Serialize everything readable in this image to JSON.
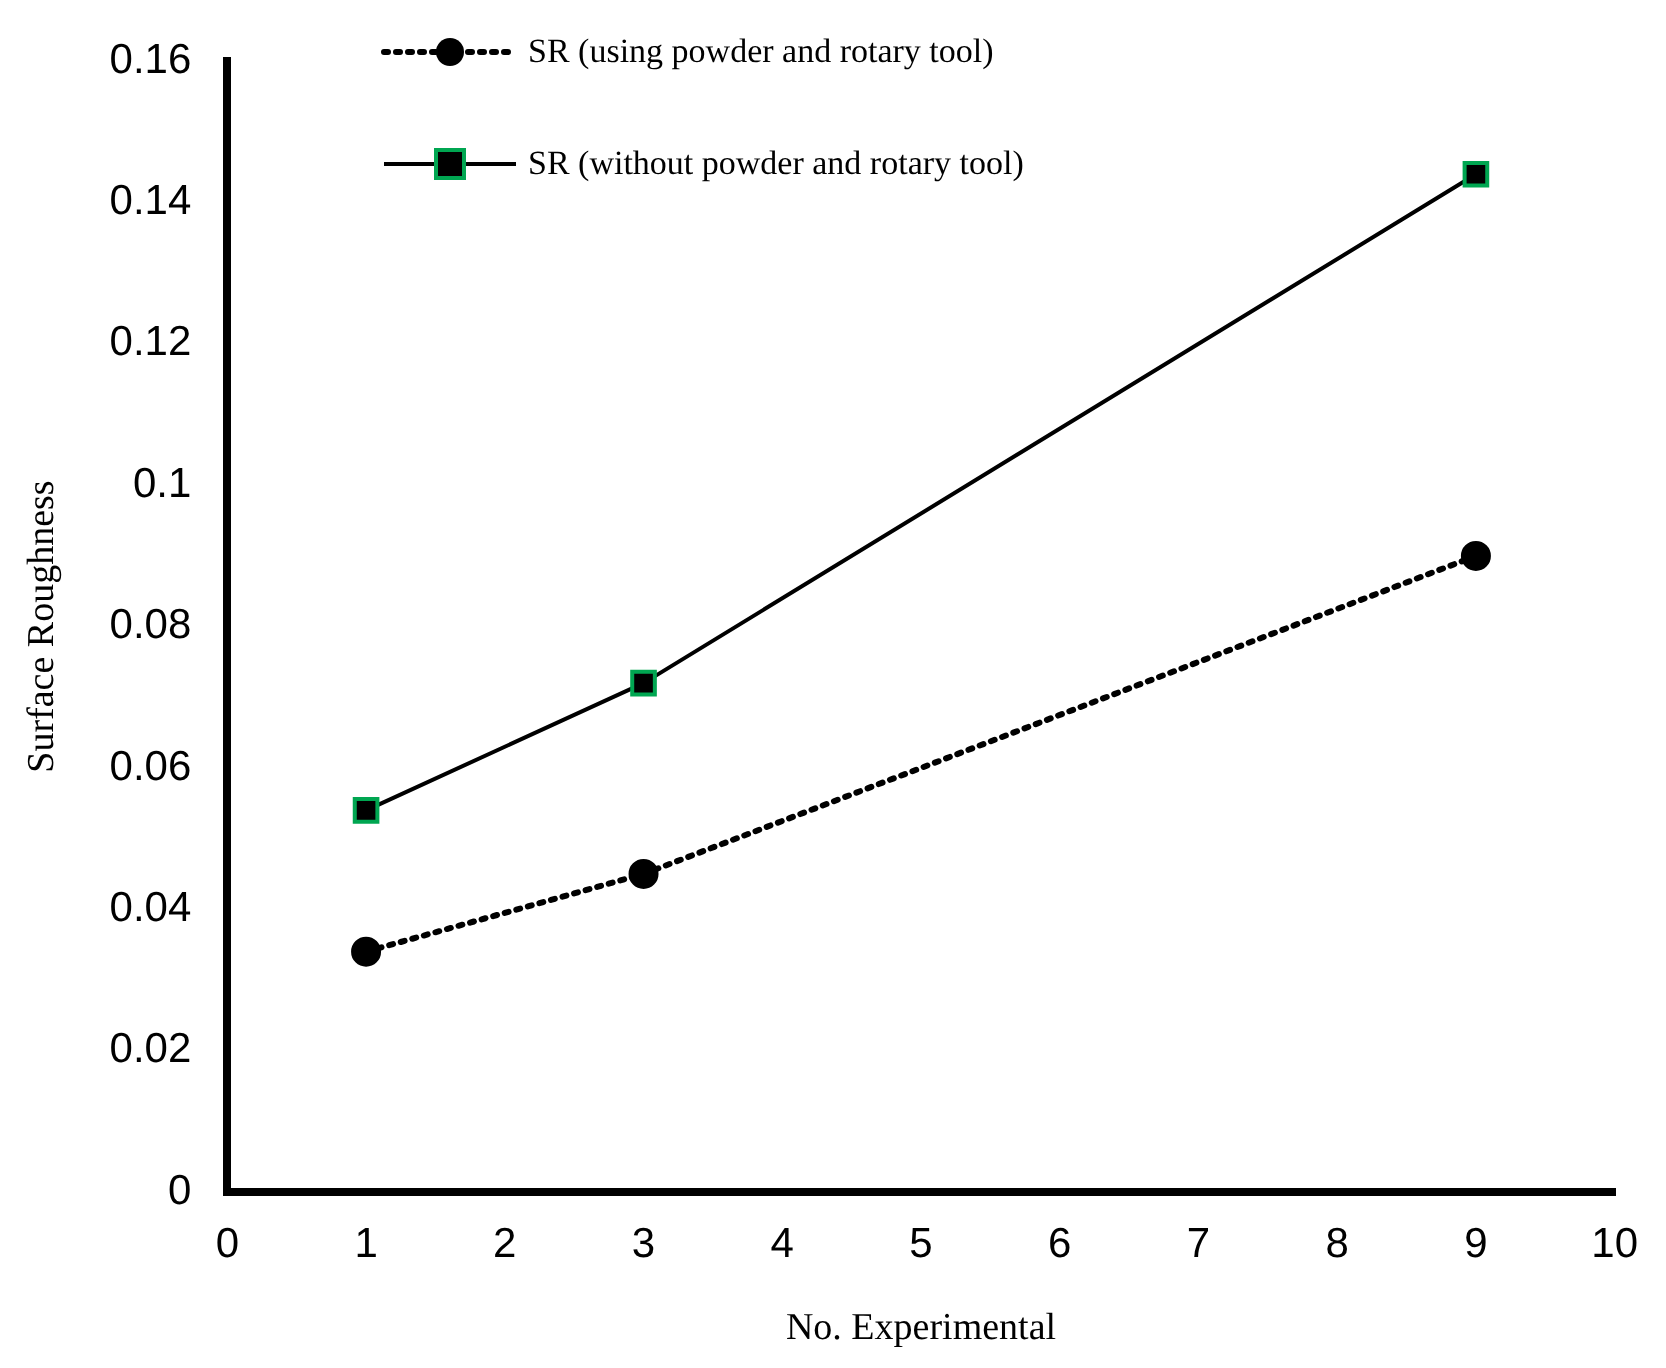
{
  "chart_data": {
    "type": "line",
    "xlabel": "No. Experimental",
    "ylabel": "Surface Roughness",
    "xlim": [
      0,
      10
    ],
    "xticks": [
      0,
      1,
      2,
      3,
      4,
      5,
      6,
      7,
      8,
      9,
      10
    ],
    "ylim": [
      0,
      0.16
    ],
    "yticks": [
      0,
      0.02,
      0.04,
      0.06,
      0.08,
      0.1,
      0.12,
      0.14,
      0.16
    ],
    "grid": false,
    "legend": "top",
    "series": [
      {
        "name": "SR (using powder and rotary tool)",
        "color": "#000000",
        "x": [
          1,
          3,
          9
        ],
        "values": [
          0.034,
          0.045,
          0.09
        ],
        "marker": "circle",
        "line_style": "dotted"
      },
      {
        "name": "SR (without powder and rotary tool)",
        "color": "#000000",
        "x": [
          1,
          3,
          9
        ],
        "values": [
          0.054,
          0.072,
          0.144
        ],
        "marker": "square",
        "line_style": "solid"
      }
    ]
  }
}
